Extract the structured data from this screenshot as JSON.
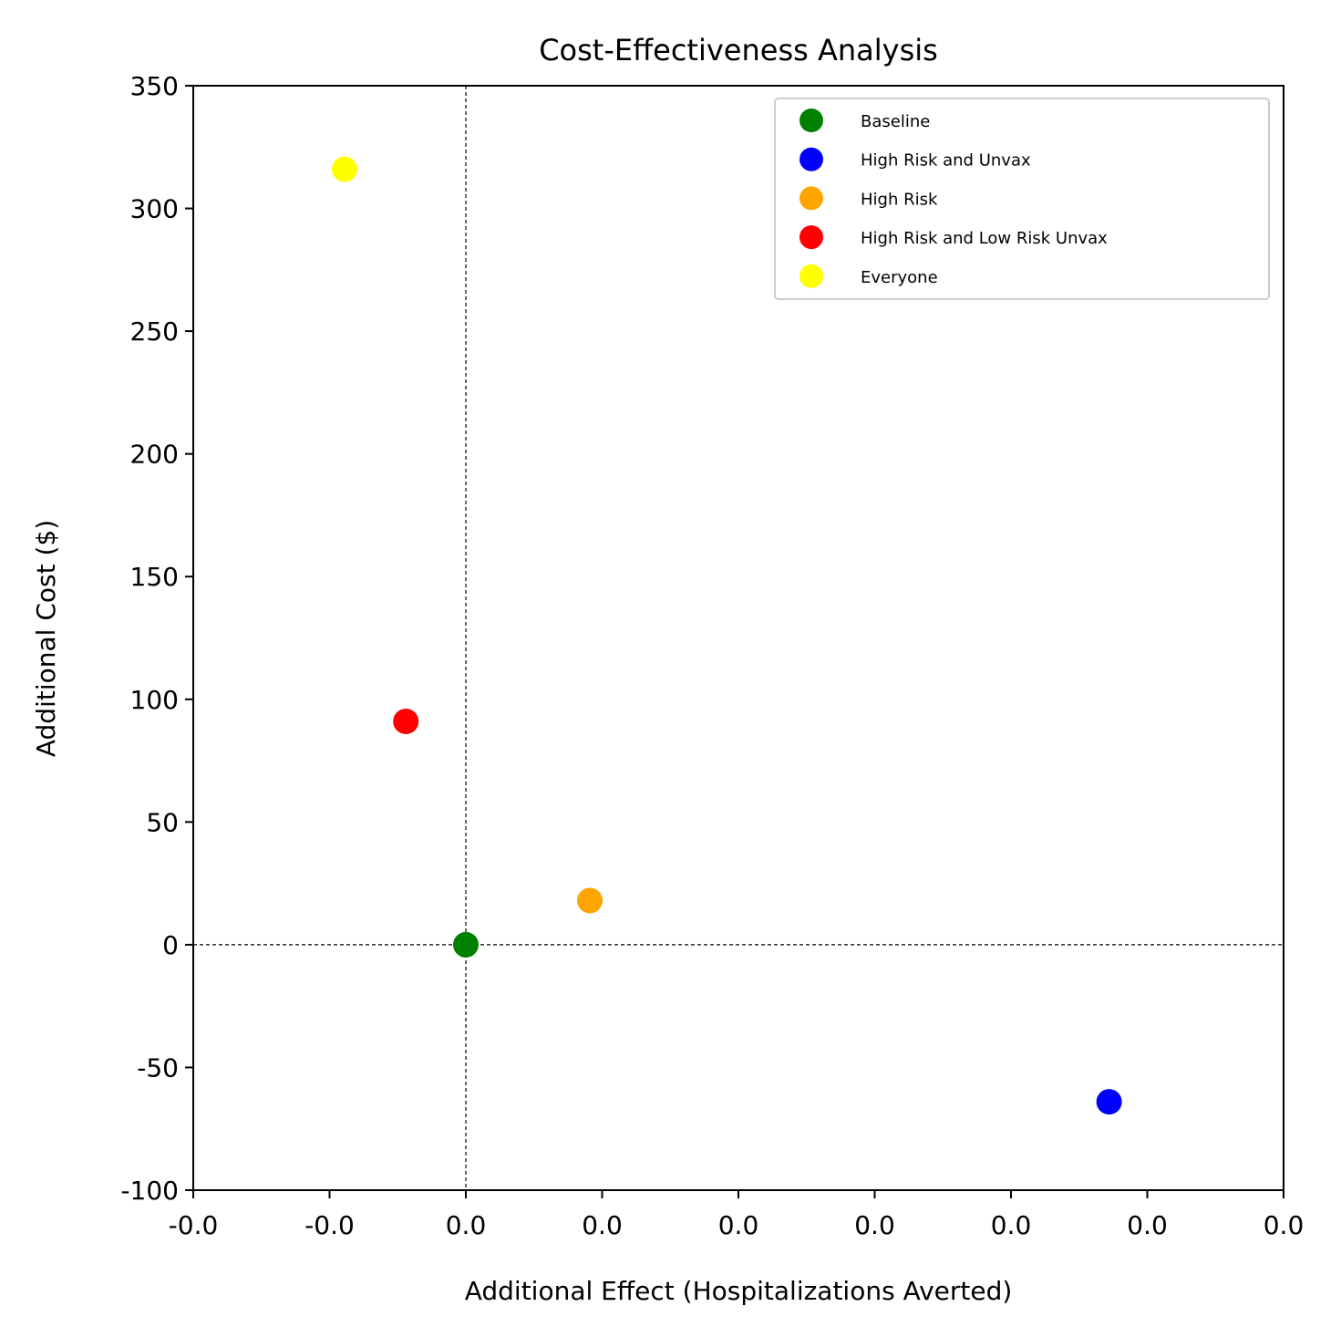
{
  "chart_data": {
    "type": "scatter",
    "title": "Cost-Effectiveness Analysis",
    "xlabel": "Additional Effect (Hospitalizations Averted)",
    "ylabel": "Additional Cost ($)",
    "xlim": [
      -0.0002,
      0.0006
    ],
    "ylim": [
      -100,
      350
    ],
    "x_ticks": [
      -0.0002,
      -0.0001,
      0.0,
      0.0001,
      0.0002,
      0.0003,
      0.0004,
      0.0005,
      0.0006
    ],
    "x_tick_labels": [
      "-0.0",
      "-0.0",
      "0.0",
      "0.0",
      "0.0",
      "0.0",
      "0.0",
      "0.0",
      "0.0"
    ],
    "y_ticks": [
      -100,
      -50,
      0,
      50,
      100,
      150,
      200,
      250,
      300,
      350
    ],
    "y_tick_labels": [
      "-100",
      "-50",
      "0",
      "50",
      "100",
      "150",
      "200",
      "250",
      "300",
      "350"
    ],
    "reference_lines": {
      "x": 0,
      "y": 0,
      "style": "dashed"
    },
    "grid": false,
    "legend_position": "top-right",
    "series": [
      {
        "name": "Baseline",
        "color": "#008000",
        "x": [
          0.0
        ],
        "y": [
          0
        ]
      },
      {
        "name": "High Risk and Unvax",
        "color": "#0000ff",
        "x": [
          0.000472
        ],
        "y": [
          -64
        ]
      },
      {
        "name": "High Risk",
        "color": "#ffa500",
        "x": [
          9.1e-05
        ],
        "y": [
          18
        ]
      },
      {
        "name": "High Risk and Low Risk Unvax",
        "color": "#ff0000",
        "x": [
          -4.4e-05
        ],
        "y": [
          91
        ]
      },
      {
        "name": "Everyone",
        "color": "#ffff00",
        "x": [
          -8.9e-05
        ],
        "y": [
          316
        ]
      }
    ]
  }
}
